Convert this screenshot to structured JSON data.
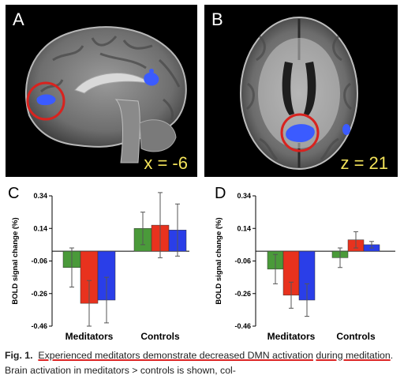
{
  "panels": {
    "a": {
      "letter": "A",
      "coordinate": "x = -6"
    },
    "b": {
      "letter": "B",
      "coordinate": "z = 21"
    }
  },
  "colors": {
    "activation": "#3b5bff",
    "highlight_circle": "#d8231f",
    "coord_text": "#f2e25a"
  },
  "chart_data": [
    {
      "type": "bar",
      "panel_letter": "C",
      "ylabel": "BOLD signal change (%)",
      "yticks": [
        "0.34",
        "0.14",
        "-0.06",
        "-0.26",
        "-0.46"
      ],
      "ylim": [
        -0.46,
        0.34
      ],
      "categories": [
        "Meditators",
        "Controls"
      ],
      "series": [
        {
          "color": "#4a9a3a",
          "values": [
            -0.1,
            0.14
          ],
          "err": [
            0.12,
            0.1
          ]
        },
        {
          "color": "#e8321e",
          "values": [
            -0.32,
            0.16
          ],
          "err": [
            0.14,
            0.2
          ]
        },
        {
          "color": "#2a3ee8",
          "values": [
            -0.3,
            0.13
          ],
          "err": [
            0.14,
            0.16
          ]
        }
      ]
    },
    {
      "type": "bar",
      "panel_letter": "D",
      "ylabel": "BOLD signal change (%)",
      "yticks": [
        "0.34",
        "0.14",
        "-0.06",
        "-0.26",
        "-0.46"
      ],
      "ylim": [
        -0.46,
        0.34
      ],
      "categories": [
        "Meditators",
        "Controls"
      ],
      "series": [
        {
          "color": "#4a9a3a",
          "values": [
            -0.11,
            -0.04
          ],
          "err": [
            0.09,
            0.06
          ]
        },
        {
          "color": "#e8321e",
          "values": [
            -0.27,
            0.07
          ],
          "err": [
            0.08,
            0.05
          ]
        },
        {
          "color": "#2a3ee8",
          "values": [
            -0.3,
            0.04
          ],
          "err": [
            0.1,
            0.02
          ]
        }
      ]
    }
  ],
  "caption": {
    "label": "Fig. 1.",
    "highlight1": "Experienced meditators demonstrate decreased DMN activation",
    "highlight2": "during meditation",
    "rest": ". Brain activation in meditators > controls is shown, col-"
  }
}
